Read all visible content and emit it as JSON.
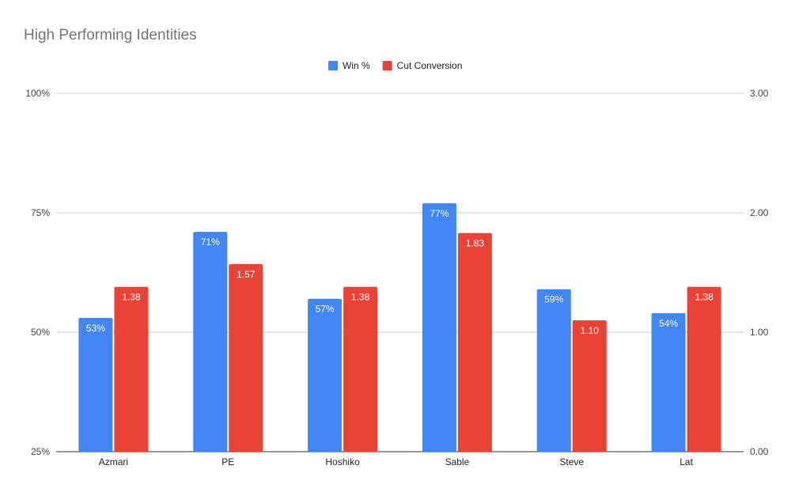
{
  "chart_data": {
    "type": "bar",
    "title": "High Performing Identities",
    "categories": [
      "Azmari",
      "PE",
      "Hoshiko",
      "Sable",
      "Steve",
      "Lat"
    ],
    "series": [
      {
        "name": "Win %",
        "axis": "left",
        "color": "#4285f4",
        "values": [
          53,
          71,
          57,
          77,
          59,
          54
        ],
        "labels": [
          "53%",
          "71%",
          "57%",
          "77%",
          "59%",
          "54%"
        ]
      },
      {
        "name": "Cut Conversion",
        "axis": "right",
        "color": "#ea4335",
        "values": [
          1.38,
          1.57,
          1.38,
          1.83,
          1.1,
          1.38
        ],
        "labels": [
          "1.38",
          "1.57",
          "1.38",
          "1.83",
          "1.10",
          "1.38"
        ]
      }
    ],
    "y_left": {
      "min": 25,
      "max": 100,
      "ticks": [
        25,
        50,
        75,
        100
      ],
      "tick_labels": [
        "25%",
        "50%",
        "75%",
        "100%"
      ]
    },
    "y_right": {
      "min": 0,
      "max": 3,
      "ticks": [
        0,
        1,
        2,
        3
      ],
      "tick_labels": [
        "0.00",
        "1.00",
        "2.00",
        "3.00"
      ]
    },
    "legend_position": "top-center",
    "grid": true
  }
}
